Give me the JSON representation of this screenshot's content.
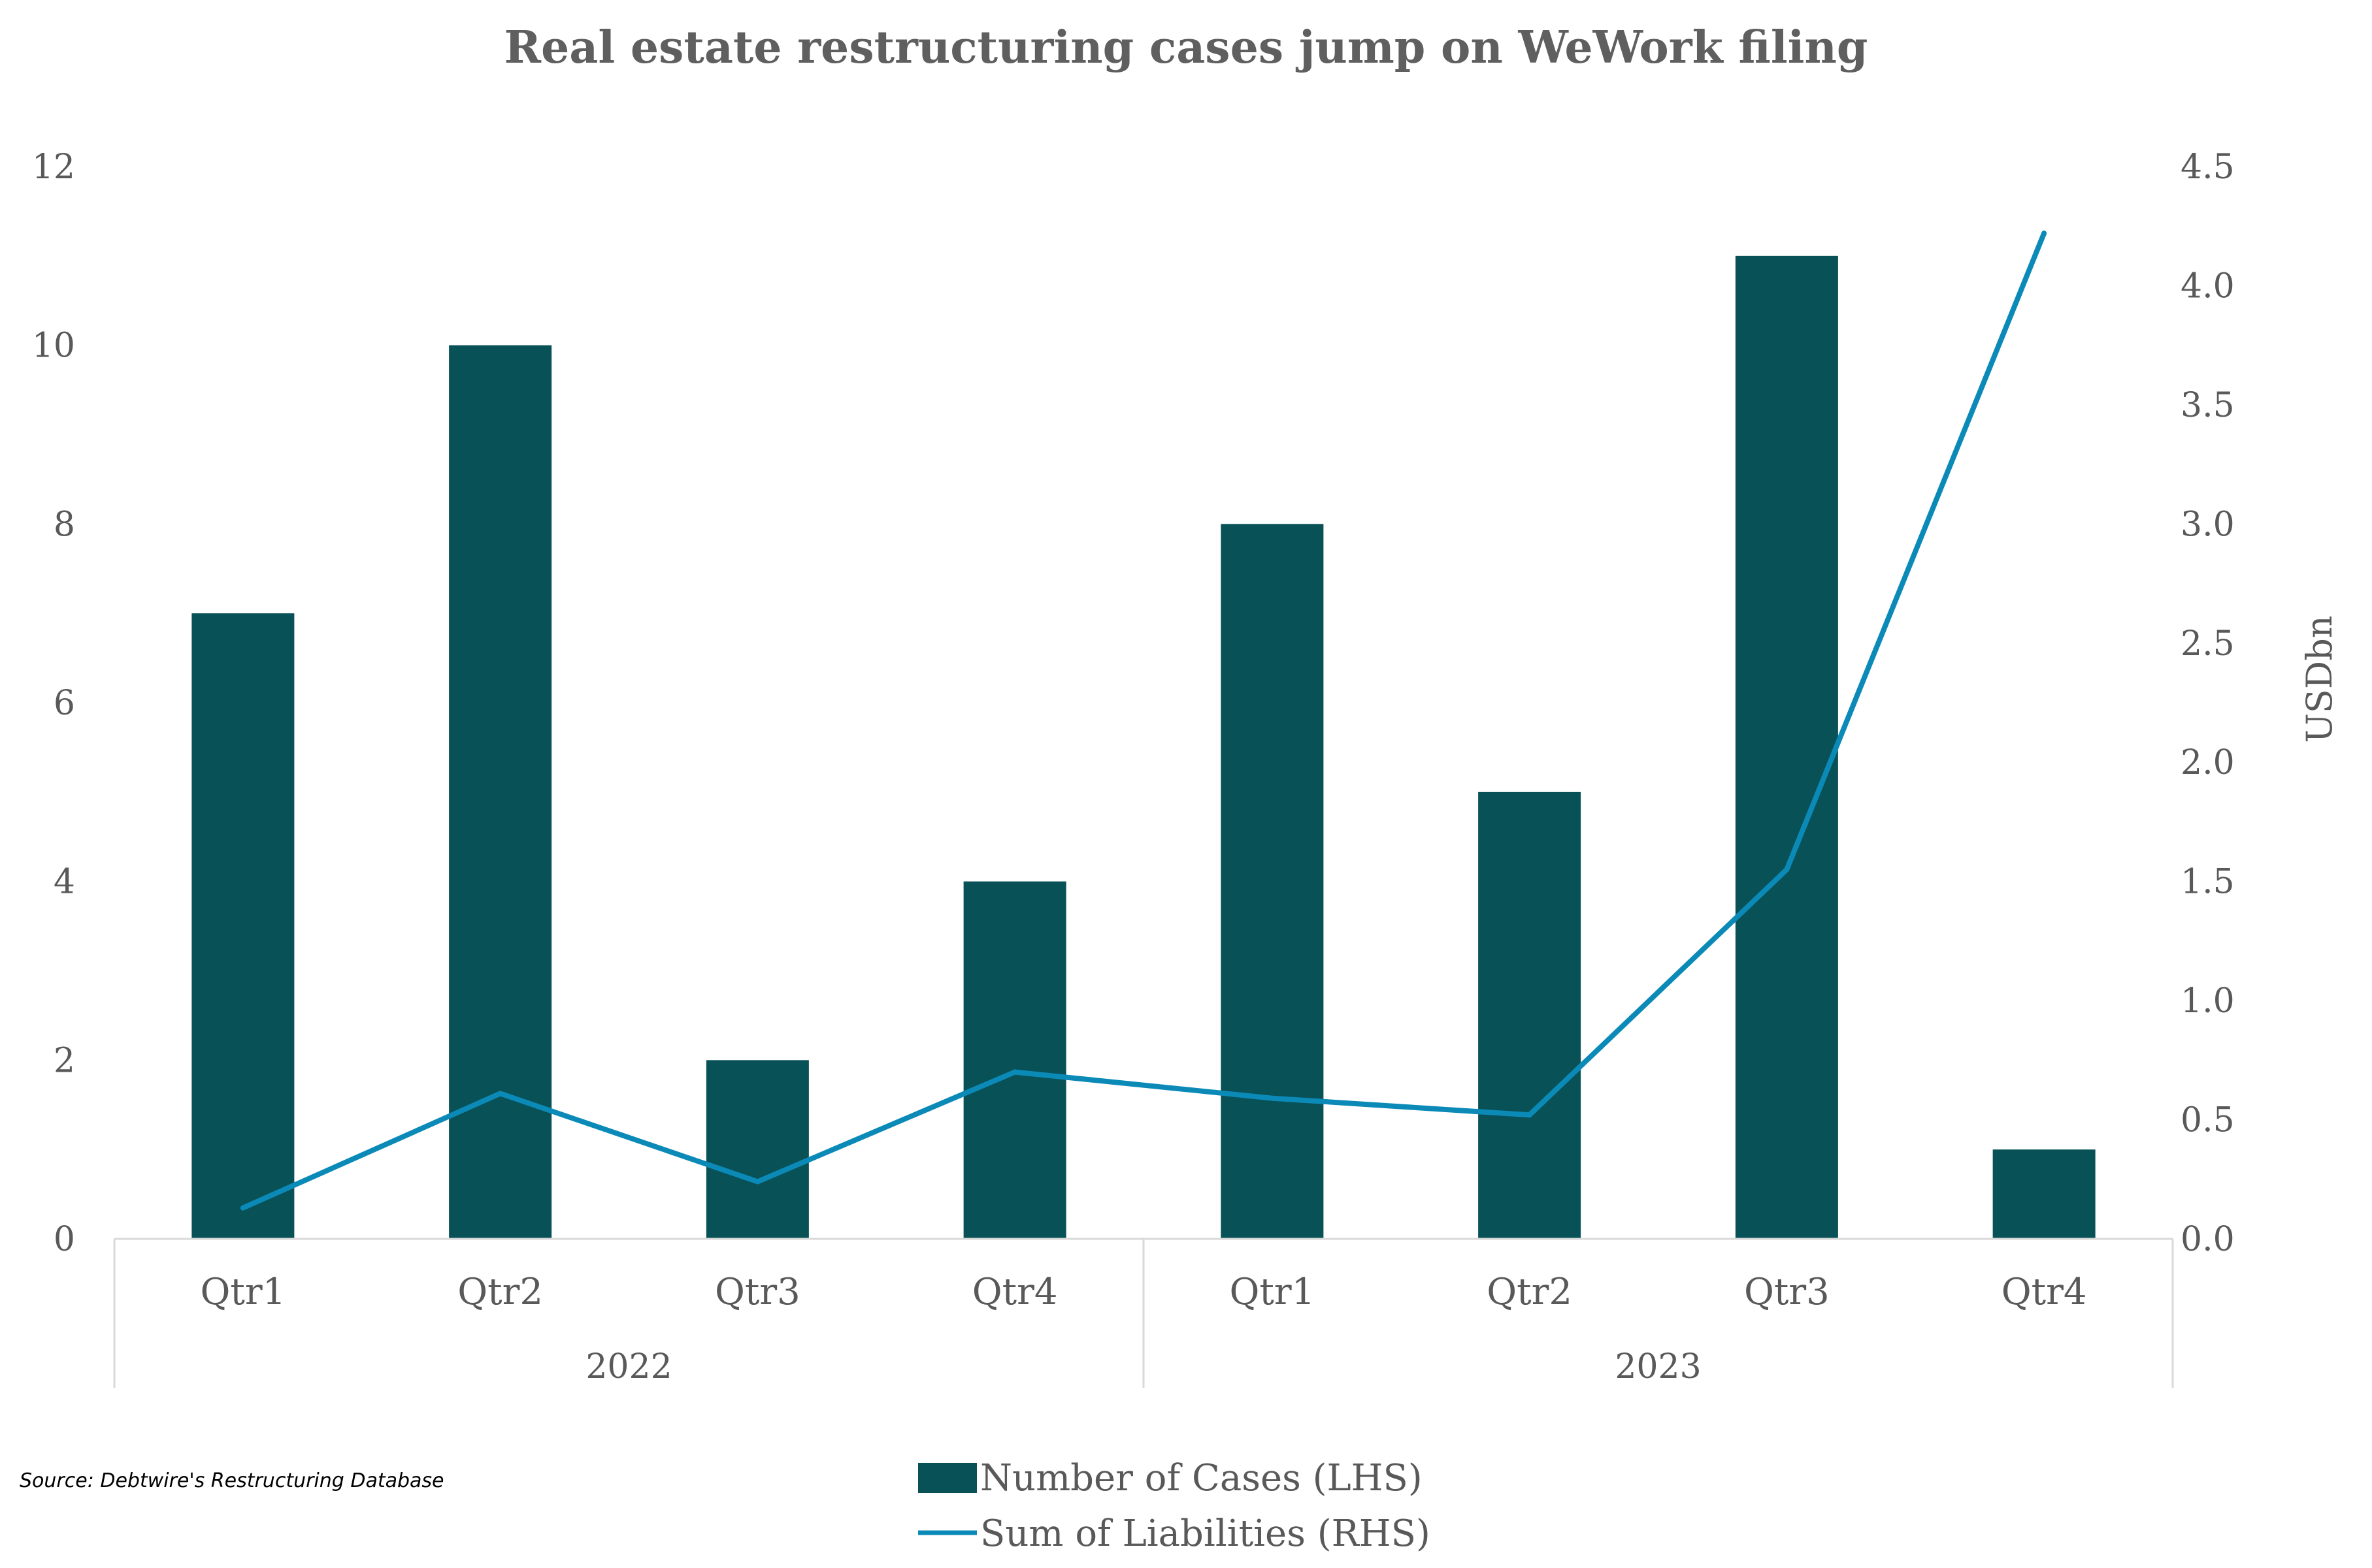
{
  "chart_data": {
    "type": "bar",
    "title": "Real estate restructuring cases jump on WeWork filing",
    "categories": [
      "Qtr1",
      "Qtr2",
      "Qtr3",
      "Qtr4",
      "Qtr1",
      "Qtr2",
      "Qtr3",
      "Qtr4"
    ],
    "groups": [
      {
        "label": "2022",
        "count": 4
      },
      {
        "label": "2023",
        "count": 4
      }
    ],
    "series": [
      {
        "name": "Number of Cases (LHS)",
        "type": "bar",
        "axis": "left",
        "color": "#085157",
        "values": [
          7,
          10,
          2,
          4,
          8,
          5,
          11,
          1
        ]
      },
      {
        "name": "Sum of Liabilities (RHS)",
        "type": "line",
        "axis": "right",
        "color": "#0b8ab8",
        "values": [
          0.13,
          0.61,
          0.24,
          0.7,
          0.59,
          0.52,
          1.55,
          4.22
        ]
      }
    ],
    "y_left": {
      "lim": [
        0,
        12
      ],
      "ticks": [
        "0",
        "2",
        "4",
        "6",
        "8",
        "10",
        "12"
      ]
    },
    "y_right": {
      "label": "USDbn",
      "lim": [
        0,
        4.5
      ],
      "ticks": [
        "0.0",
        "0.5",
        "1.0",
        "1.5",
        "2.0",
        "2.5",
        "3.0",
        "3.5",
        "4.0",
        "4.5"
      ]
    },
    "grid": false,
    "legend_position": "bottom",
    "source": "Source: Debtwire's Restructuring Database"
  }
}
